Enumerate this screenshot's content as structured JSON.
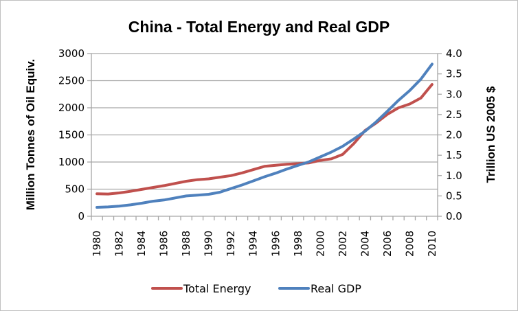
{
  "chart_data": {
    "type": "line",
    "title": "China - Total Energy and Real GDP",
    "xlabel": "",
    "ylabel": "Million Tonnes of Oil Equiv.",
    "y2label": "Trillion US 2005 $",
    "ylim": [
      0,
      3000
    ],
    "y2lim": [
      0,
      4.0
    ],
    "yticks": [
      "0",
      "500",
      "1000",
      "1500",
      "2000",
      "2500",
      "3000"
    ],
    "y2ticks": [
      "0.0",
      "0.5",
      "1.0",
      "1.5",
      "2.0",
      "2.5",
      "3.0",
      "3.5",
      "4.0"
    ],
    "x": [
      1980,
      1981,
      1982,
      1983,
      1984,
      1985,
      1986,
      1987,
      1988,
      1989,
      1990,
      1991,
      1992,
      1993,
      1994,
      1995,
      1996,
      1997,
      1998,
      1999,
      2000,
      2001,
      2002,
      2003,
      2004,
      2005,
      2006,
      2007,
      2008,
      2009,
      2010
    ],
    "xticklabels": [
      "1980",
      "1982",
      "1984",
      "1986",
      "1988",
      "1990",
      "1992",
      "1994",
      "1996",
      "1998",
      "2000",
      "2002",
      "2004",
      "2006",
      "2008",
      "2010"
    ],
    "grid": true,
    "legend_position": "bottom",
    "series": [
      {
        "name": "Total Energy",
        "axis": "left",
        "color": "#c0504d",
        "values": [
          415,
          410,
          430,
          460,
          495,
          530,
          565,
          605,
          645,
          675,
          690,
          720,
          750,
          800,
          860,
          920,
          940,
          960,
          970,
          985,
          1030,
          1060,
          1140,
          1340,
          1580,
          1720,
          1880,
          2000,
          2070,
          2180,
          2430
        ]
      },
      {
        "name": "Real GDP",
        "axis": "right",
        "color": "#4f81bd",
        "values": [
          0.22,
          0.23,
          0.25,
          0.28,
          0.32,
          0.37,
          0.4,
          0.45,
          0.5,
          0.52,
          0.54,
          0.59,
          0.68,
          0.77,
          0.87,
          0.97,
          1.06,
          1.16,
          1.25,
          1.34,
          1.46,
          1.58,
          1.72,
          1.9,
          2.09,
          2.32,
          2.58,
          2.85,
          3.09,
          3.37,
          3.74
        ]
      }
    ]
  }
}
